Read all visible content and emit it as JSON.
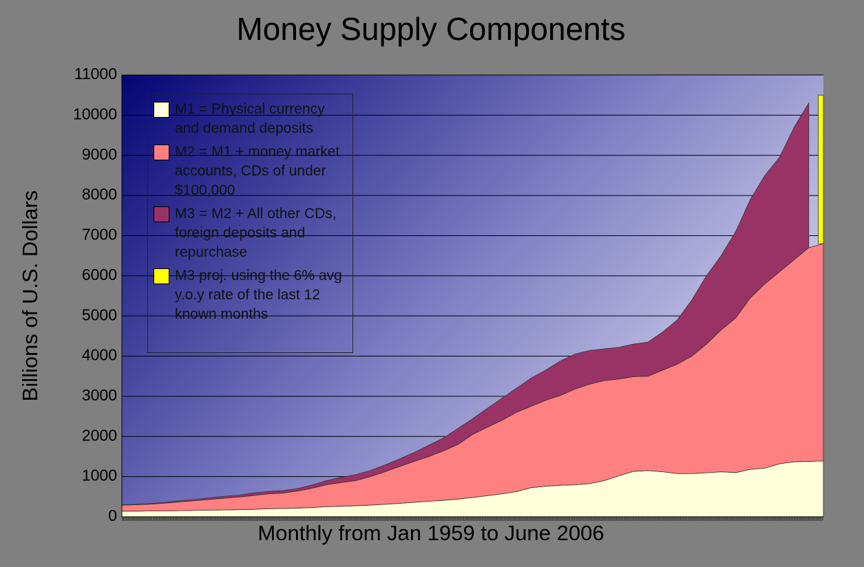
{
  "chart_data": {
    "type": "stacked_area",
    "title": "Money Supply Components",
    "x_label": "Monthly from Jan 1959 to June 2006",
    "y_label": "Billions of U.S. Dollars",
    "categories": [
      null,
      null,
      null,
      null,
      null,
      null,
      null,
      null,
      null,
      null,
      null,
      null,
      null,
      null,
      null,
      null,
      null,
      null,
      null,
      null,
      null,
      null,
      null,
      null,
      null,
      null,
      null,
      null,
      null,
      null,
      null,
      null,
      null,
      null,
      null,
      null,
      null,
      null,
      null,
      null,
      null,
      null,
      null,
      null,
      null,
      null,
      null,
      null,
      null
    ],
    "series": [
      {
        "name": "M1 = Physical currency and demand deposits",
        "color": "#ffffd9",
        "values": [
          140,
          140,
          145,
          148,
          152,
          158,
          165,
          170,
          175,
          185,
          200,
          205,
          215,
          230,
          250,
          260,
          275,
          290,
          310,
          335,
          360,
          385,
          410,
          440,
          480,
          525,
          570,
          625,
          725,
          760,
          785,
          795,
          825,
          900,
          1020,
          1130,
          1150,
          1120,
          1075,
          1075,
          1095,
          1120,
          1100,
          1180,
          1210,
          1320,
          1370,
          1380,
          1390
        ]
      },
      {
        "name": "M2 = M1 + money market accounts, CDs of under $100,000",
        "color": "#ff8080",
        "values": [
          150,
          160,
          170,
          192,
          218,
          242,
          265,
          290,
          315,
          345,
          370,
          385,
          425,
          480,
          550,
          590,
          625,
          710,
          810,
          915,
          1020,
          1115,
          1230,
          1360,
          1570,
          1705,
          1830,
          1975,
          2025,
          2140,
          2235,
          2385,
          2475,
          2490,
          2410,
          2360,
          2350,
          2530,
          2725,
          2925,
          3205,
          3530,
          3850,
          4270,
          4590,
          4780,
          5030,
          5320,
          5410
        ]
      },
      {
        "name": "M3 = M2 + All other CDs, foreign deposits and repurchase",
        "color": "#993366",
        "values": [
          10,
          10,
          15,
          20,
          30,
          30,
          40,
          50,
          50,
          60,
          60,
          60,
          60,
          80,
          100,
          130,
          150,
          150,
          170,
          190,
          220,
          280,
          320,
          400,
          390,
          470,
          550,
          600,
          700,
          750,
          860,
          870,
          840,
          790,
          790,
          810,
          850,
          950,
          1100,
          1400,
          1700,
          1850,
          2150,
          2450,
          2700,
          2850,
          3300,
          3600,
          null
        ]
      },
      {
        "name": "M3 proj. using the 6% avg y.o.y rate of the last 12 known months",
        "color": "#ffff00",
        "values": [
          null,
          null,
          null,
          null,
          null,
          null,
          null,
          null,
          null,
          null,
          null,
          null,
          null,
          null,
          null,
          null,
          null,
          null,
          null,
          null,
          null,
          null,
          null,
          null,
          null,
          null,
          null,
          null,
          null,
          null,
          null,
          null,
          null,
          null,
          null,
          null,
          null,
          null,
          null,
          null,
          null,
          null,
          null,
          null,
          null,
          null,
          null,
          null,
          3700
        ]
      }
    ],
    "ylim": [
      0,
      11000
    ],
    "yticks": [
      0,
      1000,
      2000,
      3000,
      4000,
      5000,
      6000,
      7000,
      8000,
      9000,
      10000,
      11000
    ],
    "grid": true
  }
}
